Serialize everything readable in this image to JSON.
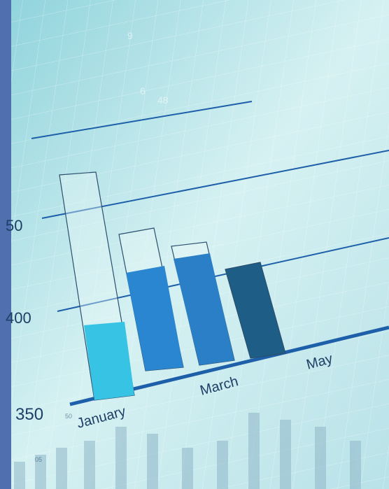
{
  "scale_labels": [
    "50",
    "400",
    "350"
  ],
  "month_labels": [
    "January",
    "March",
    "May"
  ],
  "faint_labels": [
    "9",
    "48",
    "6",
    "05",
    "50"
  ]
}
